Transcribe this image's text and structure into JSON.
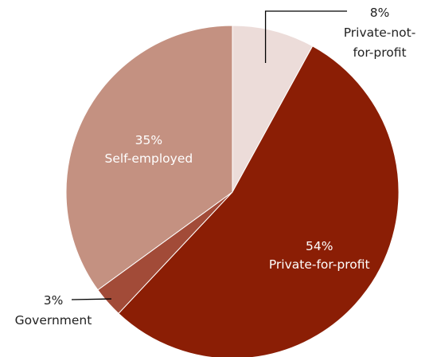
{
  "chart_data": {
    "type": "pie",
    "title": "",
    "start_angle_deg": 0,
    "direction": "clockwise",
    "legend": "none",
    "slices": [
      {
        "label": "Private-not-for-profit",
        "label_lines": [
          "Private-not-",
          "for-profit"
        ],
        "value": 8,
        "value_label": "8%",
        "color": "#ecdcd9",
        "label_position": "outside"
      },
      {
        "label": "Private-for-profit",
        "label_lines": [
          "Private-for-profit"
        ],
        "value": 54,
        "value_label": "54%",
        "color": "#8b1e05",
        "label_position": "inside"
      },
      {
        "label": "Government",
        "label_lines": [
          "Government"
        ],
        "value": 3,
        "value_label": "3%",
        "color": "#a24b38",
        "label_position": "outside"
      },
      {
        "label": "Self-employed",
        "label_lines": [
          "Self-employed"
        ],
        "value": 35,
        "value_label": "35%",
        "color": "#c49181",
        "label_position": "inside"
      }
    ]
  }
}
